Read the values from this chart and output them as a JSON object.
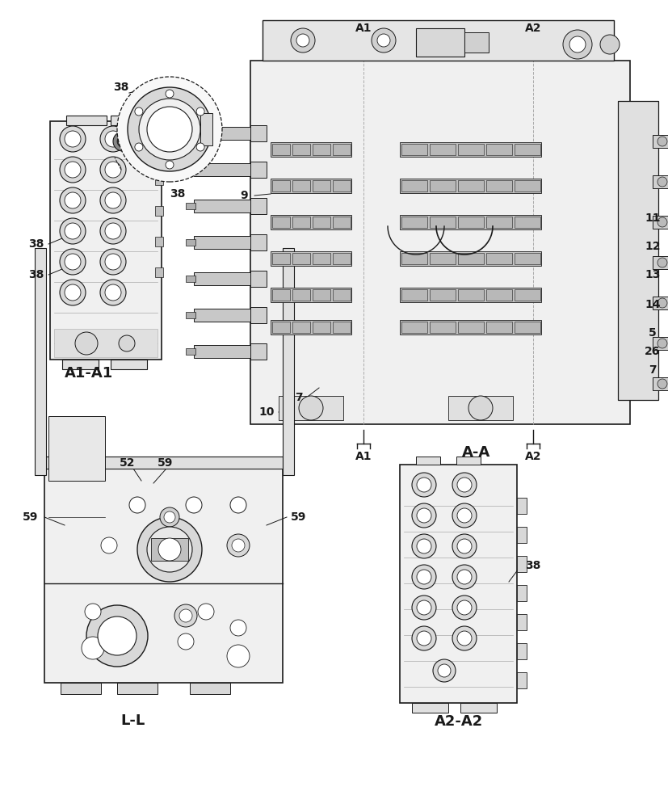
{
  "bg_color": "#ffffff",
  "fig_width": 8.28,
  "fig_height": 10.0,
  "dpi": 100,
  "line_color": "#1a1a1a",
  "gray_light": "#d8d8d8",
  "gray_mid": "#b0b0b0",
  "gray_dark": "#888888",
  "gray_fill": "#e8e8e8",
  "gray_body": "#c8c8c8",
  "section_labels": {
    "A1A1": "A1-A1",
    "AA": "A-A",
    "LL": "L-L",
    "A2A2": "A2-A2"
  }
}
